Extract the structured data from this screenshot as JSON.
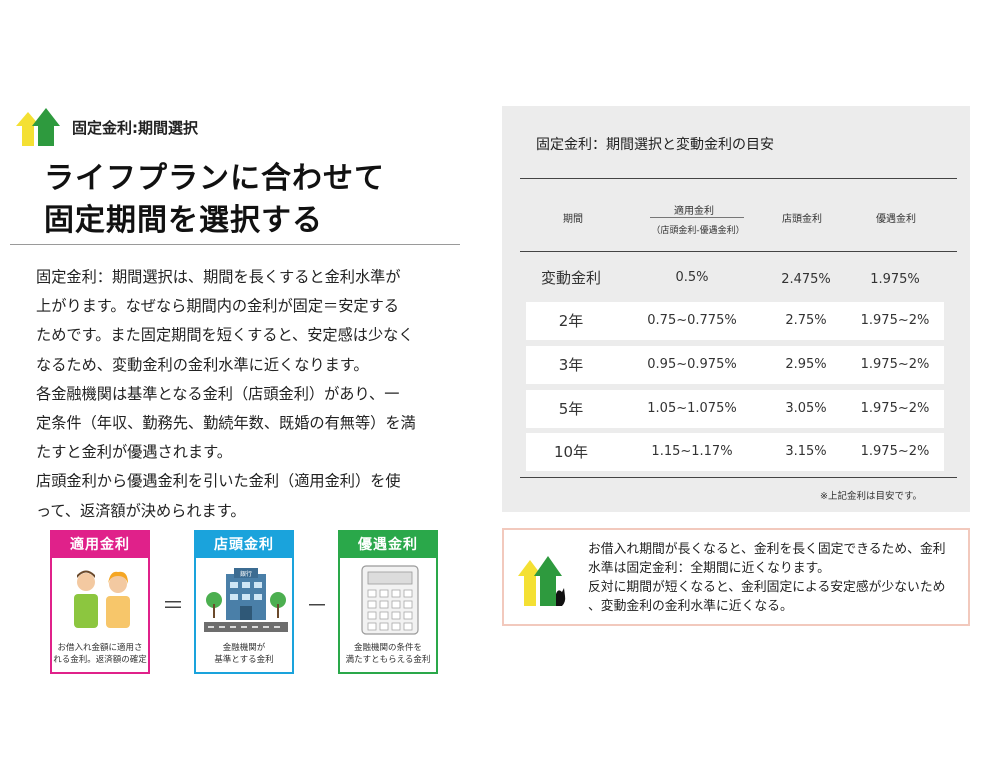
{
  "header": {
    "section_label": "固定金利:期間選択",
    "headline_line1": "ライフプランに合わせて",
    "headline_line2": "固定期間を選択する"
  },
  "body_lines": [
    "固定金利：期間選択は、期間を長くすると金利水準が",
    "上がります。なぜなら期間内の金利が固定＝安定する",
    "ためです。また固定期間を短くすると、安定感は少なく",
    "なるため、変動金利の金利水準に近くなります。",
    "各金融機関は基準となる金利（店頭金利）があり、一",
    "定条件（年収、勤務先、勤続年数、既婚の有無等）を満",
    "たすと金利が優遇されます。",
    "店頭金利から優遇金利を引いた金利（適用金利）を使",
    "って、返済額が決められます。"
  ],
  "formula": {
    "applied": {
      "title": "適用金利",
      "caption1": "お借入れ金額に適用さ",
      "caption2": "れる金利。返済額の確定",
      "color": "#e0218a"
    },
    "equals": "＝",
    "storefront": {
      "title": "店頭金利",
      "caption1": "金融機関が",
      "caption2": "基準とする金利",
      "color": "#1aa3dc",
      "sign": "銀行"
    },
    "minus": "－",
    "preferential": {
      "title": "優遇金利",
      "caption1": "金融機関の条件を",
      "caption2": "満たすともらえる金利",
      "color": "#2aa84a"
    }
  },
  "table": {
    "title": "固定金利：期間選択と変動金利の目安",
    "headers": {
      "period": "期間",
      "applied": "適用金利",
      "applied_sub": "（店頭金利-優遇金利）",
      "storefront": "店頭金利",
      "preferential": "優遇金利"
    },
    "rows": [
      {
        "period": "変動金利",
        "applied": "0.5%",
        "storefront": "2.475%",
        "preferential": "1.975%"
      },
      {
        "period": "2年",
        "applied": "0.75~0.775%",
        "storefront": "2.75%",
        "preferential": "1.975~2%"
      },
      {
        "period": "3年",
        "applied": "0.95~0.975%",
        "storefront": "2.95%",
        "preferential": "1.975~2%"
      },
      {
        "period": "5年",
        "applied": "1.05~1.075%",
        "storefront": "3.05%",
        "preferential": "1.975~2%"
      },
      {
        "period": "10年",
        "applied": "1.15~1.17%",
        "storefront": "3.15%",
        "preferential": "1.975~2%"
      }
    ],
    "note": "※上記金利は目安です。"
  },
  "callout": {
    "lines": [
      "お借入れ期間が長くなると、金利を長く固定できるため、金利",
      "水準は固定金利：全期間に近くなります。",
      "反対に期間が短くなると、金利固定による安定感が少ないため",
      "、変動金利の金利水準に近くなる。"
    ]
  },
  "colors": {
    "house_yellow": "#f4e033",
    "house_green": "#2e9a3e",
    "panel_bg": "#ececec",
    "callout_border": "#f2c9bd"
  }
}
